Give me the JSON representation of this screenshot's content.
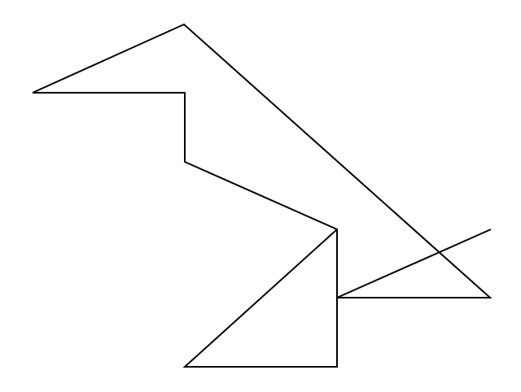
{
  "figure": {
    "kind": "line-drawing",
    "background_color": "#ffffff",
    "stroke_color": "#000000",
    "shapes": [
      "outline-path",
      "lower-triangle",
      "diagonal-line"
    ]
  }
}
